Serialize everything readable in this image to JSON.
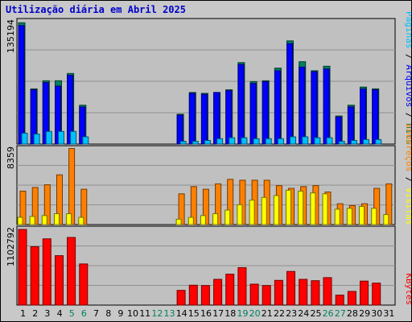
{
  "title": "Utilização diária em Abril 2025",
  "chart_data": {
    "type": "bar",
    "x": [
      1,
      2,
      3,
      4,
      5,
      6,
      7,
      8,
      9,
      10,
      11,
      12,
      13,
      14,
      15,
      16,
      17,
      18,
      19,
      20,
      21,
      22,
      23,
      24,
      25,
      26,
      27,
      28,
      29,
      30,
      31
    ],
    "weekend_days": [
      5,
      6,
      12,
      13,
      19,
      20,
      26,
      27
    ],
    "panels": [
      {
        "id": "hits-files-pages",
        "max_label": "135194",
        "ymax": 135194,
        "legend": [
          {
            "text": "Hits",
            "color": "#008060"
          },
          {
            "text": " / ",
            "color": "#000000"
          },
          {
            "text": "Arquivos",
            "color": "#0000ff"
          },
          {
            "text": " / ",
            "color": "#000000"
          },
          {
            "text": "Páginas",
            "color": "#00c0ff"
          }
        ],
        "series": [
          {
            "key": "hits",
            "name": "Hits",
            "color": "#008060",
            "values": [
              134000,
              61000,
              70000,
              70000,
              78000,
              43000,
              0,
              0,
              0,
              0,
              0,
              0,
              0,
              33000,
              57000,
              56000,
              57000,
              60000,
              90000,
              69000,
              70000,
              84000,
              114000,
              91000,
              81000,
              86000,
              31000,
              43000,
              63000,
              61000,
              0
            ]
          },
          {
            "key": "files",
            "name": "Arquivos",
            "color": "#0000ff",
            "values": [
              131000,
              60000,
              68000,
              64000,
              76000,
              41000,
              0,
              0,
              0,
              0,
              0,
              0,
              0,
              32000,
              56000,
              55000,
              57000,
              59000,
              88000,
              67000,
              69000,
              81000,
              111000,
              85000,
              80000,
              83000,
              30000,
              41000,
              61000,
              60000,
              0
            ]
          },
          {
            "key": "pages",
            "name": "Páginas",
            "color": "#00c0ff",
            "values": [
              12000,
              11000,
              14000,
              14000,
              14000,
              8000,
              0,
              0,
              0,
              0,
              0,
              0,
              0,
              3000,
              3000,
              4000,
              6000,
              7000,
              7000,
              6000,
              6000,
              6000,
              8000,
              8000,
              7000,
              7000,
              3000,
              4000,
              5000,
              5000,
              0
            ]
          }
        ]
      },
      {
        "id": "visits-addresses",
        "max_label": "8359",
        "ymax": 8359,
        "legend": [
          {
            "text": "Visitas",
            "color": "#ffff00"
          },
          {
            "text": " / ",
            "color": "#000000"
          },
          {
            "text": "Endereços",
            "color": "#ff8000"
          }
        ],
        "series": [
          {
            "key": "addresses",
            "name": "Endereços",
            "color": "#ff8000",
            "values": [
              3700,
              4100,
              4400,
              5500,
              8400,
              3900,
              0,
              0,
              0,
              0,
              0,
              0,
              0,
              3400,
              4200,
              3900,
              4500,
              5000,
              4900,
              4900,
              4900,
              4300,
              4000,
              4200,
              4300,
              3600,
              2300,
              2100,
              2300,
              4000,
              4500
            ]
          },
          {
            "key": "visits",
            "name": "Visitas",
            "color": "#ffff00",
            "values": [
              800,
              900,
              1000,
              1200,
              1200,
              800,
              0,
              0,
              0,
              0,
              0,
              0,
              0,
              600,
              800,
              1000,
              1200,
              1600,
              2200,
              2700,
              3000,
              3200,
              3800,
              3700,
              3500,
              3400,
              1700,
              1800,
              2000,
              1800,
              1100
            ]
          }
        ]
      },
      {
        "id": "kbytes",
        "max_label": "1102792",
        "ymax": 1102792,
        "legend": [
          {
            "text": "KBytes",
            "color": "#ff0000"
          }
        ],
        "series": [
          {
            "key": "kbytes",
            "name": "KBytes",
            "color": "#ff0000",
            "values": [
              1103000,
              850000,
              965000,
              720000,
              985000,
              600000,
              0,
              0,
              0,
              0,
              0,
              0,
              0,
              215000,
              290000,
              285000,
              375000,
              450000,
              545000,
              305000,
              285000,
              360000,
              490000,
              375000,
              355000,
              400000,
              145000,
              200000,
              350000,
              320000,
              0
            ]
          }
        ]
      }
    ]
  }
}
